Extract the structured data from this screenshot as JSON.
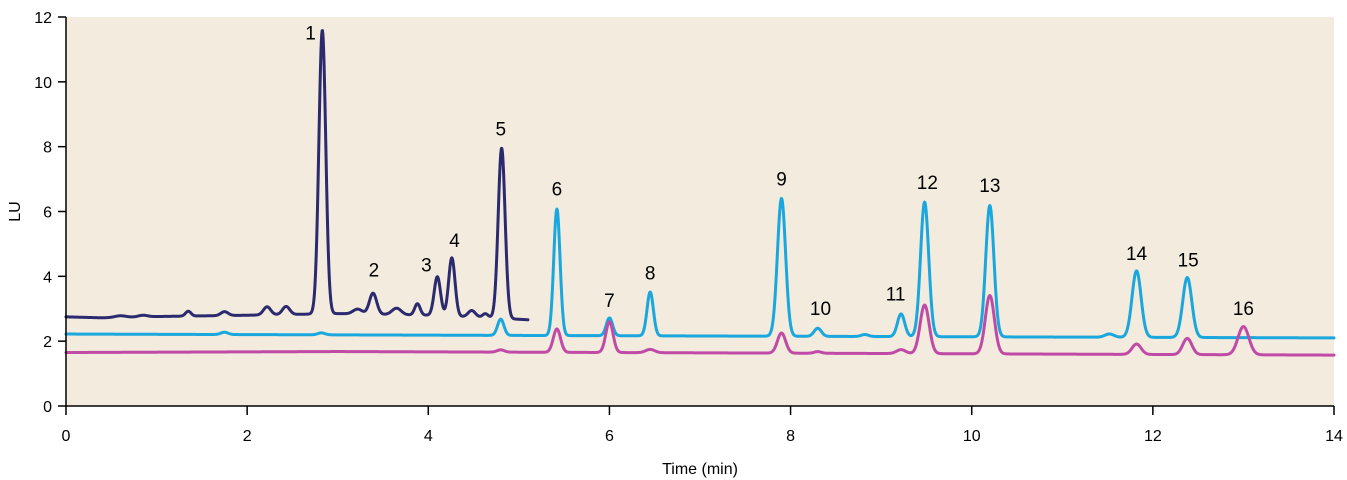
{
  "chart_data": {
    "type": "line",
    "xlabel": "Time (min)",
    "ylabel": "LU",
    "xlim": [
      0,
      14
    ],
    "ylim": [
      0,
      12
    ],
    "x_ticks": [
      0,
      2,
      4,
      6,
      8,
      10,
      12,
      14
    ],
    "y_ticks": [
      0,
      2,
      4,
      6,
      8,
      10,
      12
    ],
    "grid": false,
    "plot_background": "#f3ebdd",
    "series": [
      {
        "color": "#2b2a6e",
        "x_range": [
          0,
          5.1
        ],
        "baseline": [
          [
            0,
            2.75
          ],
          [
            0.4,
            2.72
          ],
          [
            1.0,
            2.76
          ],
          [
            2.0,
            2.8
          ],
          [
            3.0,
            2.85
          ],
          [
            4.0,
            2.8
          ],
          [
            4.7,
            2.72
          ],
          [
            5.1,
            2.66
          ]
        ],
        "peaks": [
          {
            "t": 0.6,
            "h": 0.05,
            "w": 0.06
          },
          {
            "t": 0.85,
            "h": 0.05,
            "w": 0.05
          },
          {
            "t": 1.35,
            "h": 0.15,
            "w": 0.03
          },
          {
            "t": 1.75,
            "h": 0.12,
            "w": 0.04
          },
          {
            "t": 2.22,
            "h": 0.25,
            "w": 0.04
          },
          {
            "t": 2.43,
            "h": 0.25,
            "w": 0.04
          },
          {
            "t": 2.83,
            "h": 8.75,
            "w": 0.038
          },
          {
            "t": 3.22,
            "h": 0.15,
            "w": 0.05
          },
          {
            "t": 3.39,
            "h": 0.65,
            "w": 0.04
          },
          {
            "t": 3.65,
            "h": 0.2,
            "w": 0.05
          },
          {
            "t": 3.88,
            "h": 0.35,
            "w": 0.03
          },
          {
            "t": 4.1,
            "h": 1.2,
            "w": 0.035
          },
          {
            "t": 4.26,
            "h": 1.8,
            "w": 0.035
          },
          {
            "t": 4.48,
            "h": 0.2,
            "w": 0.04
          },
          {
            "t": 4.63,
            "h": 0.12,
            "w": 0.03
          },
          {
            "t": 4.81,
            "h": 5.25,
            "w": 0.038
          }
        ]
      },
      {
        "color": "#1aa7dd",
        "x_range": [
          0,
          14
        ],
        "baseline": [
          [
            0,
            2.22
          ],
          [
            14,
            2.1
          ]
        ],
        "peaks": [
          {
            "t": 1.75,
            "h": 0.07,
            "w": 0.04
          },
          {
            "t": 2.82,
            "h": 0.06,
            "w": 0.04
          },
          {
            "t": 4.8,
            "h": 0.5,
            "w": 0.035
          },
          {
            "t": 5.42,
            "h": 3.9,
            "w": 0.035
          },
          {
            "t": 6.0,
            "h": 0.55,
            "w": 0.035
          },
          {
            "t": 6.45,
            "h": 1.35,
            "w": 0.035
          },
          {
            "t": 7.9,
            "h": 4.25,
            "w": 0.045
          },
          {
            "t": 8.3,
            "h": 0.25,
            "w": 0.04
          },
          {
            "t": 8.82,
            "h": 0.06,
            "w": 0.04
          },
          {
            "t": 9.22,
            "h": 0.7,
            "w": 0.04
          },
          {
            "t": 9.48,
            "h": 4.15,
            "w": 0.045
          },
          {
            "t": 10.2,
            "h": 4.05,
            "w": 0.045
          },
          {
            "t": 11.52,
            "h": 0.1,
            "w": 0.05
          },
          {
            "t": 11.82,
            "h": 2.05,
            "w": 0.05
          },
          {
            "t": 12.38,
            "h": 1.85,
            "w": 0.05
          }
        ]
      },
      {
        "color": "#c04ba6",
        "x_range": [
          0,
          14
        ],
        "baseline": [
          [
            0,
            1.65
          ],
          [
            3.0,
            1.68
          ],
          [
            6.0,
            1.65
          ],
          [
            14,
            1.57
          ]
        ],
        "peaks": [
          {
            "t": 4.8,
            "h": 0.07,
            "w": 0.04
          },
          {
            "t": 5.42,
            "h": 0.72,
            "w": 0.04
          },
          {
            "t": 6.0,
            "h": 0.95,
            "w": 0.04
          },
          {
            "t": 6.45,
            "h": 0.1,
            "w": 0.05
          },
          {
            "t": 7.9,
            "h": 0.62,
            "w": 0.045
          },
          {
            "t": 8.3,
            "h": 0.05,
            "w": 0.04
          },
          {
            "t": 9.22,
            "h": 0.12,
            "w": 0.05
          },
          {
            "t": 9.48,
            "h": 1.5,
            "w": 0.05
          },
          {
            "t": 10.2,
            "h": 1.8,
            "w": 0.05
          },
          {
            "t": 11.82,
            "h": 0.32,
            "w": 0.05
          },
          {
            "t": 12.38,
            "h": 0.5,
            "w": 0.05
          },
          {
            "t": 13.0,
            "h": 0.87,
            "w": 0.06
          }
        ]
      }
    ],
    "peak_labels": [
      {
        "text": "1",
        "x": 2.7,
        "y": 11.3
      },
      {
        "text": "2",
        "x": 3.4,
        "y": 4.0
      },
      {
        "text": "3",
        "x": 3.98,
        "y": 4.15
      },
      {
        "text": "4",
        "x": 4.29,
        "y": 4.9
      },
      {
        "text": "5",
        "x": 4.8,
        "y": 8.35
      },
      {
        "text": "6",
        "x": 5.42,
        "y": 6.5
      },
      {
        "text": "7",
        "x": 6.0,
        "y": 3.05
      },
      {
        "text": "8",
        "x": 6.45,
        "y": 3.9
      },
      {
        "text": "9",
        "x": 7.9,
        "y": 6.8
      },
      {
        "text": "10",
        "x": 8.33,
        "y": 2.8
      },
      {
        "text": "11",
        "x": 9.16,
        "y": 3.25
      },
      {
        "text": "12",
        "x": 9.51,
        "y": 6.7
      },
      {
        "text": "13",
        "x": 10.2,
        "y": 6.6
      },
      {
        "text": "14",
        "x": 11.82,
        "y": 4.5
      },
      {
        "text": "15",
        "x": 12.39,
        "y": 4.3
      },
      {
        "text": "16",
        "x": 13.0,
        "y": 2.8
      }
    ]
  }
}
